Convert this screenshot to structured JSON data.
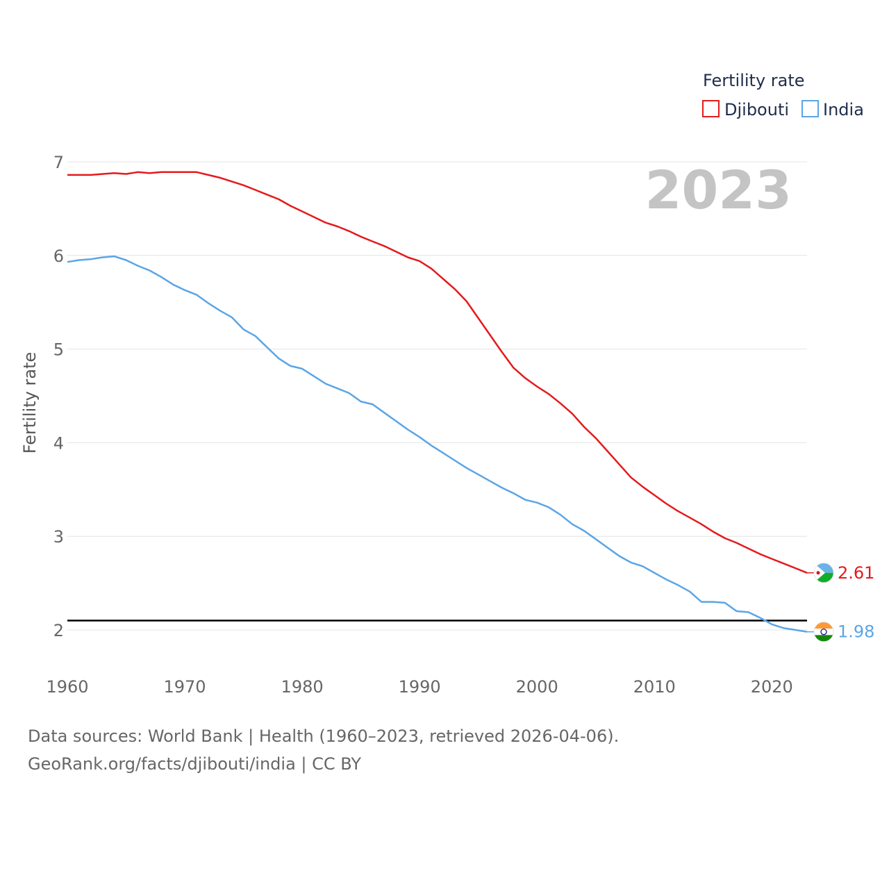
{
  "chart_data": {
    "type": "line",
    "title": "",
    "ylabel": "Fertility rate",
    "xlabel": "",
    "xlim": [
      1960,
      2023
    ],
    "ylim": [
      1.6,
      7.0
    ],
    "x_ticks": [
      "1960",
      "1970",
      "1980",
      "1990",
      "2000",
      "2010",
      "2020"
    ],
    "y_ticks": [
      "2",
      "3",
      "4",
      "5",
      "6",
      "7"
    ],
    "legend": {
      "title": "Fertility rate",
      "position": "top-right"
    },
    "current_year": "2023",
    "reference_line": {
      "value": 2.1,
      "color": "#000000"
    },
    "series": [
      {
        "name": "Djibouti",
        "color": "#e41a1c",
        "end_label": "2.61",
        "x": [
          1960,
          1961,
          1962,
          1963,
          1964,
          1965,
          1966,
          1967,
          1968,
          1969,
          1970,
          1971,
          1972,
          1973,
          1974,
          1975,
          1976,
          1977,
          1978,
          1979,
          1980,
          1981,
          1982,
          1983,
          1984,
          1985,
          1986,
          1987,
          1988,
          1989,
          1990,
          1991,
          1992,
          1993,
          1994,
          1995,
          1996,
          1997,
          1998,
          1999,
          2000,
          2001,
          2002,
          2003,
          2004,
          2005,
          2006,
          2007,
          2008,
          2009,
          2010,
          2011,
          2012,
          2013,
          2014,
          2015,
          2016,
          2017,
          2018,
          2019,
          2020,
          2021,
          2022,
          2023
        ],
        "values": [
          6.86,
          6.86,
          6.86,
          6.87,
          6.88,
          6.87,
          6.89,
          6.88,
          6.89,
          6.89,
          6.89,
          6.89,
          6.86,
          6.83,
          6.79,
          6.75,
          6.7,
          6.65,
          6.6,
          6.53,
          6.47,
          6.41,
          6.35,
          6.31,
          6.26,
          6.2,
          6.15,
          6.1,
          6.04,
          5.98,
          5.94,
          5.86,
          5.75,
          5.64,
          5.51,
          5.33,
          5.15,
          4.97,
          4.8,
          4.69,
          4.6,
          4.52,
          4.42,
          4.31,
          4.17,
          4.05,
          3.91,
          3.77,
          3.63,
          3.53,
          3.44,
          3.35,
          3.27,
          3.2,
          3.13,
          3.05,
          2.98,
          2.93,
          2.87,
          2.81,
          2.76,
          2.71,
          2.66,
          2.61
        ]
      },
      {
        "name": "India",
        "color": "#5aa5e6",
        "end_label": "1.98",
        "x": [
          1960,
          1961,
          1962,
          1963,
          1964,
          1965,
          1966,
          1967,
          1968,
          1969,
          1970,
          1971,
          1972,
          1973,
          1974,
          1975,
          1976,
          1977,
          1978,
          1979,
          1980,
          1981,
          1982,
          1983,
          1984,
          1985,
          1986,
          1987,
          1988,
          1989,
          1990,
          1991,
          1992,
          1993,
          1994,
          1995,
          1996,
          1997,
          1998,
          1999,
          2000,
          2001,
          2002,
          2003,
          2004,
          2005,
          2006,
          2007,
          2008,
          2009,
          2010,
          2011,
          2012,
          2013,
          2014,
          2015,
          2016,
          2017,
          2018,
          2019,
          2020,
          2021,
          2022,
          2023
        ],
        "values": [
          5.93,
          5.95,
          5.96,
          5.98,
          5.99,
          5.95,
          5.89,
          5.84,
          5.77,
          5.69,
          5.63,
          5.58,
          5.49,
          5.41,
          5.34,
          5.21,
          5.14,
          5.02,
          4.9,
          4.82,
          4.79,
          4.71,
          4.63,
          4.58,
          4.53,
          4.44,
          4.41,
          4.32,
          4.23,
          4.14,
          4.06,
          3.97,
          3.89,
          3.81,
          3.73,
          3.66,
          3.59,
          3.52,
          3.46,
          3.39,
          3.36,
          3.31,
          3.23,
          3.13,
          3.06,
          2.97,
          2.88,
          2.79,
          2.72,
          2.68,
          2.61,
          2.54,
          2.48,
          2.41,
          2.3,
          2.3,
          2.29,
          2.2,
          2.19,
          2.13,
          2.06,
          2.02,
          2.0,
          1.98
        ]
      }
    ]
  },
  "footer": {
    "line1": "Data sources: World Bank | Health (1960–2023, retrieved 2026-04-06).",
    "line2": "GeoRank.org/facts/djibouti/india | CC BY"
  }
}
